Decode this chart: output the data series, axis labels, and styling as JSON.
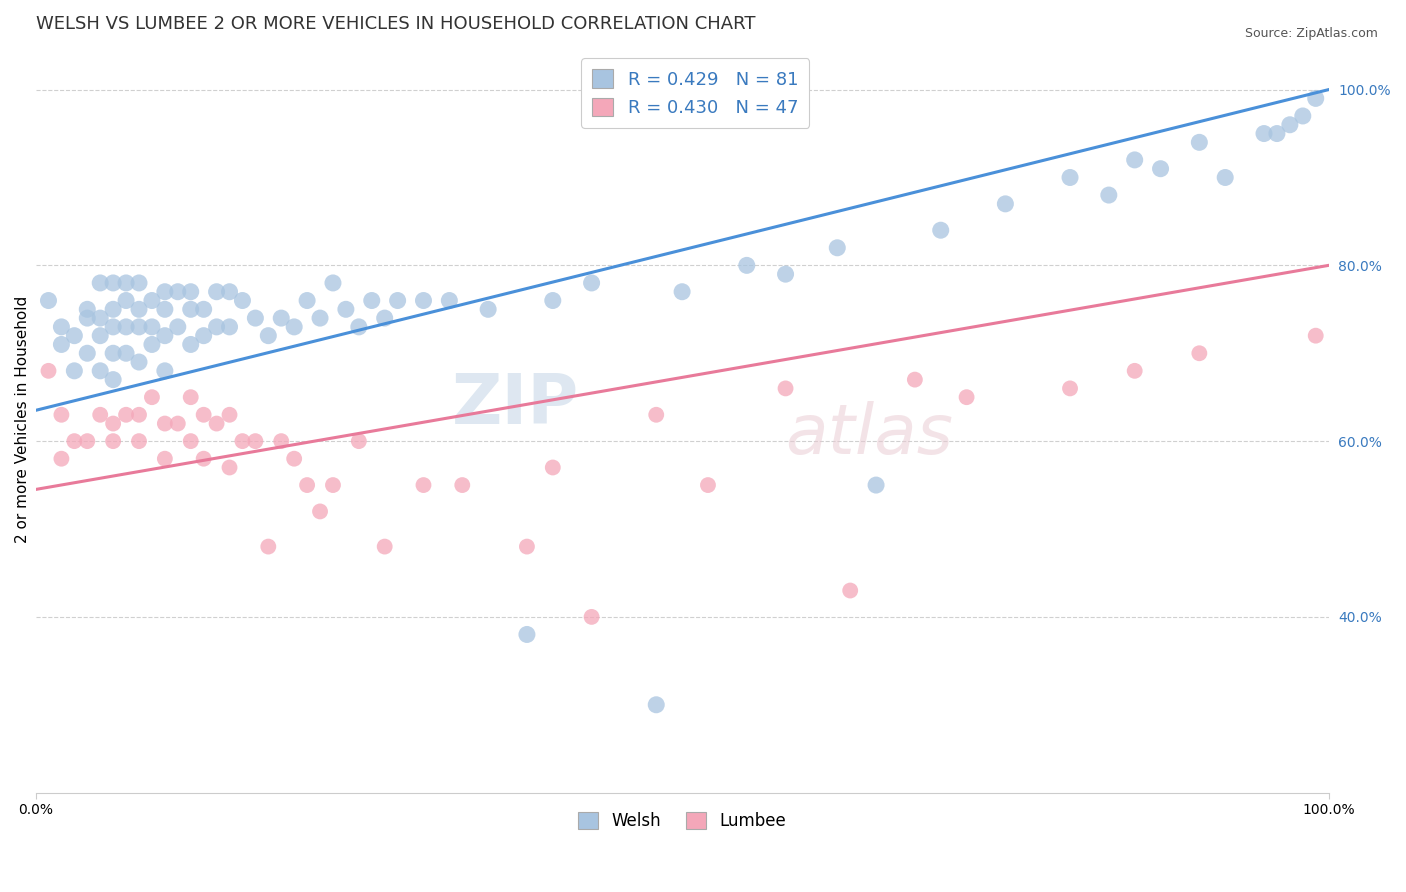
{
  "title": "WELSH VS LUMBEE 2 OR MORE VEHICLES IN HOUSEHOLD CORRELATION CHART",
  "source": "Source: ZipAtlas.com",
  "ylabel": "2 or more Vehicles in Household",
  "xlim": [
    0,
    1
  ],
  "ylim": [
    0.2,
    1.05
  ],
  "xticks": [
    0,
    1.0
  ],
  "xticklabels": [
    "0.0%",
    "100.0%"
  ],
  "yticks": [
    0.4,
    0.6,
    0.8,
    1.0
  ],
  "yticklabels": [
    "40.0%",
    "60.0%",
    "80.0%",
    "100.0%"
  ],
  "welsh_R": 0.429,
  "welsh_N": 81,
  "lumbee_R": 0.43,
  "lumbee_N": 47,
  "welsh_color": "#a8c4e0",
  "lumbee_color": "#f4a7b9",
  "welsh_line_color": "#4a90d9",
  "lumbee_line_color": "#e87a9a",
  "legend_welsh_label": "Welsh",
  "legend_lumbee_label": "Lumbee",
  "watermark_zip": "ZIP",
  "watermark_atlas": "atlas",
  "welsh_line_x0": 0.0,
  "welsh_line_y0": 0.635,
  "welsh_line_x1": 1.0,
  "welsh_line_y1": 1.0,
  "lumbee_line_x0": 0.0,
  "lumbee_line_y0": 0.545,
  "lumbee_line_x1": 1.0,
  "lumbee_line_y1": 0.8,
  "welsh_x": [
    0.01,
    0.02,
    0.02,
    0.03,
    0.03,
    0.04,
    0.04,
    0.04,
    0.05,
    0.05,
    0.05,
    0.05,
    0.06,
    0.06,
    0.06,
    0.06,
    0.06,
    0.07,
    0.07,
    0.07,
    0.07,
    0.08,
    0.08,
    0.08,
    0.08,
    0.09,
    0.09,
    0.09,
    0.1,
    0.1,
    0.1,
    0.1,
    0.11,
    0.11,
    0.12,
    0.12,
    0.12,
    0.13,
    0.13,
    0.14,
    0.14,
    0.15,
    0.15,
    0.16,
    0.17,
    0.18,
    0.19,
    0.2,
    0.21,
    0.22,
    0.23,
    0.24,
    0.25,
    0.26,
    0.27,
    0.28,
    0.3,
    0.32,
    0.35,
    0.38,
    0.4,
    0.43,
    0.48,
    0.5,
    0.55,
    0.58,
    0.62,
    0.65,
    0.7,
    0.75,
    0.8,
    0.83,
    0.85,
    0.87,
    0.9,
    0.92,
    0.95,
    0.96,
    0.97,
    0.98,
    0.99
  ],
  "welsh_y": [
    0.76,
    0.73,
    0.71,
    0.72,
    0.68,
    0.75,
    0.7,
    0.74,
    0.78,
    0.74,
    0.72,
    0.68,
    0.78,
    0.75,
    0.73,
    0.7,
    0.67,
    0.78,
    0.76,
    0.73,
    0.7,
    0.78,
    0.75,
    0.73,
    0.69,
    0.76,
    0.73,
    0.71,
    0.77,
    0.75,
    0.72,
    0.68,
    0.77,
    0.73,
    0.77,
    0.75,
    0.71,
    0.75,
    0.72,
    0.77,
    0.73,
    0.77,
    0.73,
    0.76,
    0.74,
    0.72,
    0.74,
    0.73,
    0.76,
    0.74,
    0.78,
    0.75,
    0.73,
    0.76,
    0.74,
    0.76,
    0.76,
    0.76,
    0.75,
    0.38,
    0.76,
    0.78,
    0.3,
    0.77,
    0.8,
    0.79,
    0.82,
    0.55,
    0.84,
    0.87,
    0.9,
    0.88,
    0.92,
    0.91,
    0.94,
    0.9,
    0.95,
    0.95,
    0.96,
    0.97,
    0.99
  ],
  "lumbee_x": [
    0.01,
    0.02,
    0.02,
    0.03,
    0.04,
    0.05,
    0.06,
    0.06,
    0.07,
    0.08,
    0.08,
    0.09,
    0.1,
    0.1,
    0.11,
    0.12,
    0.12,
    0.13,
    0.13,
    0.14,
    0.15,
    0.15,
    0.16,
    0.17,
    0.18,
    0.19,
    0.2,
    0.21,
    0.22,
    0.23,
    0.25,
    0.27,
    0.3,
    0.33,
    0.38,
    0.4,
    0.43,
    0.48,
    0.52,
    0.58,
    0.63,
    0.68,
    0.72,
    0.8,
    0.85,
    0.9,
    0.99
  ],
  "lumbee_y": [
    0.68,
    0.63,
    0.58,
    0.6,
    0.6,
    0.63,
    0.62,
    0.6,
    0.63,
    0.63,
    0.6,
    0.65,
    0.62,
    0.58,
    0.62,
    0.6,
    0.65,
    0.63,
    0.58,
    0.62,
    0.63,
    0.57,
    0.6,
    0.6,
    0.48,
    0.6,
    0.58,
    0.55,
    0.52,
    0.55,
    0.6,
    0.48,
    0.55,
    0.55,
    0.48,
    0.57,
    0.4,
    0.63,
    0.55,
    0.66,
    0.43,
    0.67,
    0.65,
    0.66,
    0.68,
    0.7,
    0.72
  ],
  "title_fontsize": 13,
  "axis_fontsize": 11,
  "tick_fontsize": 10,
  "grid_color": "#d0d0d0",
  "grid_linestyle": "--",
  "background_color": "#ffffff"
}
